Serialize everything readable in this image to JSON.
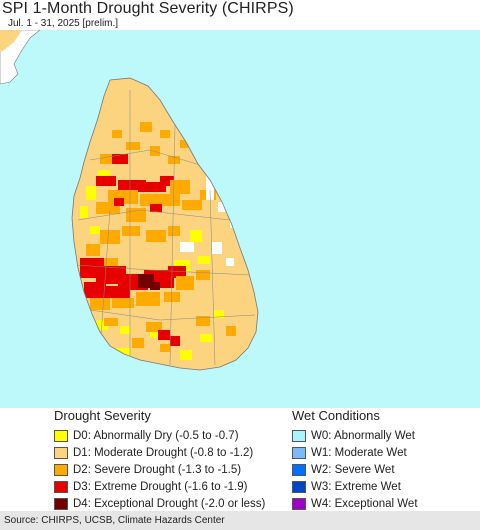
{
  "title": "SPI 1-Month Drought Severity (CHIRPS)",
  "subtitle": "Jul. 1 - 31, 2025 [prelim.]",
  "colors": {
    "ocean": "#bdf8fb",
    "neighbor_land": "#ffffff"
  },
  "legend": {
    "drought": {
      "title": "Drought Severity",
      "items": [
        {
          "code": "D0",
          "label": "D0: Abnormally Dry (-0.5 to -0.7)",
          "color": "#ffff00"
        },
        {
          "code": "D1",
          "label": "D1: Moderate Drought (-0.8 to -1.2)",
          "color": "#fcd37f"
        },
        {
          "code": "D2",
          "label": "D2: Severe Drought (-1.3 to -1.5)",
          "color": "#ffaa00"
        },
        {
          "code": "D3",
          "label": "D3: Extreme Drought (-1.6 to -1.9)",
          "color": "#e60000"
        },
        {
          "code": "D4",
          "label": "D4: Exceptional Drought (-2.0 or less)",
          "color": "#730000"
        }
      ]
    },
    "wet": {
      "title": "Wet Conditions",
      "items": [
        {
          "code": "W0",
          "label": "W0: Abnormally Wet",
          "color": "#aaf5ff"
        },
        {
          "code": "W1",
          "label": "W1: Moderate Wet",
          "color": "#7ab9fa"
        },
        {
          "code": "W2",
          "label": "W2: Severe Wet",
          "color": "#0070ff"
        },
        {
          "code": "W3",
          "label": "W3: Extreme Wet",
          "color": "#0046c8"
        },
        {
          "code": "W4",
          "label": "W4: Exceptional Wet",
          "color": "#a000c8"
        }
      ]
    }
  },
  "footer": "Source: CHIRPS, UCSB, Climate Hazards Center"
}
